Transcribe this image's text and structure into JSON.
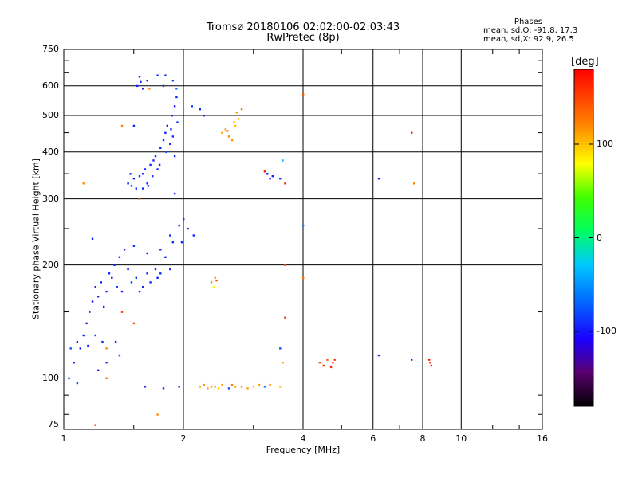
{
  "chart_data": {
    "type": "scatter",
    "title": "Tromsø 20180106 02:02:00-02:03:43",
    "subtitle": "RwPretec (8p)",
    "xlabel": "Frequency [MHz]",
    "ylabel": "Stationary phase Virtual Height [km]",
    "x_scale": "log",
    "y_scale": "log",
    "xlim": [
      1,
      16
    ],
    "ylim": [
      73,
      750
    ],
    "x_ticks": [
      1,
      2,
      4,
      6,
      8,
      10,
      16
    ],
    "x_tick_labels": [
      "1",
      "2",
      "4",
      "6",
      "8",
      "10",
      "16"
    ],
    "y_ticks": [
      75,
      100,
      200,
      300,
      400,
      500,
      600,
      750
    ],
    "y_tick_labels": [
      "75",
      "100",
      "200",
      "300",
      "400",
      "500",
      "600",
      "750"
    ],
    "grid": true,
    "info": {
      "heading": "Phases",
      "line1": "mean, sd,O: -91.8, 17.3",
      "line2": "mean, sd,X: 92.9, 26.5"
    },
    "colorbar": {
      "label": "[deg]",
      "min": -180,
      "max": 180,
      "ticks": [
        100,
        0,
        -100
      ],
      "tick_labels": [
        "100",
        "0",
        "-100"
      ]
    },
    "points": [
      [
        1.53,
        600,
        -95
      ],
      [
        1.56,
        615,
        -95
      ],
      [
        1.58,
        590,
        -100
      ],
      [
        1.55,
        635,
        -100
      ],
      [
        1.62,
        620,
        -95
      ],
      [
        1.72,
        640,
        -95
      ],
      [
        1.78,
        600,
        -90
      ],
      [
        1.8,
        640,
        -90
      ],
      [
        1.88,
        620,
        -80
      ],
      [
        1.92,
        590,
        -60
      ],
      [
        1.45,
        330,
        -95
      ],
      [
        1.48,
        325,
        -95
      ],
      [
        1.5,
        340,
        -100
      ],
      [
        1.52,
        320,
        -90
      ],
      [
        1.55,
        345,
        -95
      ],
      [
        1.58,
        350,
        -100
      ],
      [
        1.6,
        360,
        -95
      ],
      [
        1.62,
        330,
        -100
      ],
      [
        1.65,
        370,
        -95
      ],
      [
        1.68,
        380,
        -95
      ],
      [
        1.7,
        390,
        -90
      ],
      [
        1.72,
        360,
        -95
      ],
      [
        1.75,
        410,
        -95
      ],
      [
        1.78,
        430,
        -90
      ],
      [
        1.8,
        450,
        -95
      ],
      [
        1.82,
        470,
        -95
      ],
      [
        1.85,
        420,
        -95
      ],
      [
        1.87,
        500,
        -95
      ],
      [
        1.9,
        530,
        -100
      ],
      [
        1.92,
        560,
        -95
      ],
      [
        1.93,
        480,
        -95
      ],
      [
        1.47,
        350,
        -90
      ],
      [
        1.63,
        325,
        -90
      ],
      [
        1.67,
        345,
        -95
      ],
      [
        1.74,
        370,
        -95
      ],
      [
        1.81,
        400,
        -80
      ],
      [
        1.86,
        460,
        -95
      ],
      [
        1.88,
        440,
        -95
      ],
      [
        1.9,
        390,
        -95
      ],
      [
        1.58,
        320,
        -95
      ],
      [
        1.04,
        120,
        -80
      ],
      [
        1.06,
        110,
        -90
      ],
      [
        1.08,
        125,
        -95
      ],
      [
        1.1,
        120,
        -95
      ],
      [
        1.12,
        130,
        -95
      ],
      [
        1.14,
        140,
        -95
      ],
      [
        1.16,
        150,
        -95
      ],
      [
        1.18,
        160,
        -100
      ],
      [
        1.2,
        175,
        -95
      ],
      [
        1.22,
        165,
        -95
      ],
      [
        1.24,
        180,
        -95
      ],
      [
        1.26,
        155,
        -95
      ],
      [
        1.28,
        170,
        -90
      ],
      [
        1.3,
        190,
        -100
      ],
      [
        1.32,
        185,
        -95
      ],
      [
        1.34,
        200,
        -95
      ],
      [
        1.36,
        175,
        -90
      ],
      [
        1.38,
        210,
        -95
      ],
      [
        1.4,
        170,
        -95
      ],
      [
        1.45,
        195,
        -95
      ],
      [
        1.48,
        180,
        -95
      ],
      [
        1.52,
        185,
        -90
      ],
      [
        1.55,
        170,
        -100
      ],
      [
        1.58,
        175,
        -95
      ],
      [
        1.62,
        190,
        -95
      ],
      [
        1.65,
        180,
        -95
      ],
      [
        1.7,
        195,
        -90
      ],
      [
        1.72,
        185,
        -95
      ],
      [
        1.75,
        190,
        -95
      ],
      [
        1.8,
        210,
        -95
      ],
      [
        1.2,
        130,
        -90
      ],
      [
        1.25,
        125,
        -95
      ],
      [
        1.15,
        122,
        -95
      ],
      [
        1.18,
        235,
        -95
      ],
      [
        1.42,
        220,
        -95
      ],
      [
        1.5,
        225,
        -95
      ],
      [
        1.62,
        215,
        -95
      ],
      [
        1.75,
        220,
        -95
      ],
      [
        1.85,
        240,
        -95
      ],
      [
        1.88,
        230,
        -95
      ],
      [
        1.95,
        255,
        -95
      ],
      [
        1.98,
        230,
        -95
      ],
      [
        2.0,
        265,
        -95
      ],
      [
        2.05,
        250,
        -95
      ],
      [
        2.12,
        240,
        -95
      ],
      [
        1.9,
        310,
        -95
      ],
      [
        1.03,
        100,
        -80
      ],
      [
        1.08,
        97,
        -80
      ],
      [
        1.22,
        105,
        -95
      ],
      [
        1.28,
        110,
        -90
      ],
      [
        1.6,
        95,
        -95
      ],
      [
        1.78,
        94,
        -90
      ],
      [
        1.95,
        95,
        -95
      ],
      [
        2.2,
        95,
        110
      ],
      [
        2.25,
        96,
        115
      ],
      [
        2.3,
        94,
        110
      ],
      [
        2.35,
        95,
        120
      ],
      [
        2.4,
        95,
        115
      ],
      [
        2.5,
        96,
        110
      ],
      [
        2.6,
        94,
        -80
      ],
      [
        2.65,
        96,
        125
      ],
      [
        2.7,
        95,
        110
      ],
      [
        2.8,
        95,
        120
      ],
      [
        2.9,
        94,
        110
      ],
      [
        3.0,
        95,
        100
      ],
      [
        3.1,
        96,
        110
      ],
      [
        3.2,
        95,
        -60
      ],
      [
        3.3,
        96,
        120
      ],
      [
        3.5,
        95,
        100
      ],
      [
        2.45,
        94,
        95
      ],
      [
        2.5,
        450,
        110
      ],
      [
        2.55,
        460,
        115
      ],
      [
        2.6,
        440,
        120
      ],
      [
        2.7,
        470,
        100
      ],
      [
        2.65,
        430,
        115
      ],
      [
        2.75,
        490,
        110
      ],
      [
        2.8,
        520,
        125
      ],
      [
        2.72,
        510,
        115
      ],
      [
        2.58,
        455,
        118
      ],
      [
        2.68,
        480,
        105
      ],
      [
        2.35,
        180,
        120
      ],
      [
        2.4,
        185,
        110
      ],
      [
        2.38,
        175,
        80
      ],
      [
        2.42,
        182,
        150
      ],
      [
        3.2,
        355,
        170
      ],
      [
        3.25,
        350,
        -100
      ],
      [
        3.3,
        340,
        -100
      ],
      [
        3.35,
        345,
        -95
      ],
      [
        3.5,
        340,
        -95
      ],
      [
        3.55,
        380,
        -40
      ],
      [
        3.6,
        330,
        160
      ],
      [
        3.5,
        120,
        -80
      ],
      [
        3.55,
        110,
        120
      ],
      [
        3.6,
        145,
        150
      ],
      [
        3.6,
        200,
        140
      ],
      [
        4.0,
        570,
        140
      ],
      [
        4.0,
        255,
        -60
      ],
      [
        4.0,
        185,
        130
      ],
      [
        4.4,
        110,
        140
      ],
      [
        4.5,
        108,
        160
      ],
      [
        4.6,
        112,
        140
      ],
      [
        4.7,
        107,
        160
      ],
      [
        4.75,
        110,
        150
      ],
      [
        4.8,
        112,
        160
      ],
      [
        6.2,
        115,
        -95
      ],
      [
        6.2,
        340,
        -100
      ],
      [
        7.5,
        450,
        170
      ],
      [
        7.6,
        330,
        120
      ],
      [
        7.5,
        112,
        -95
      ],
      [
        8.3,
        112,
        170
      ],
      [
        8.4,
        108,
        160
      ],
      [
        8.35,
        110,
        165
      ],
      [
        1.2,
        75,
        150
      ],
      [
        1.28,
        100,
        130
      ],
      [
        1.35,
        125,
        -95
      ],
      [
        1.38,
        115,
        -80
      ],
      [
        1.4,
        150,
        150
      ],
      [
        1.4,
        470,
        120
      ],
      [
        1.12,
        330,
        120
      ],
      [
        1.55,
        300,
        120
      ],
      [
        1.72,
        80,
        120
      ],
      [
        1.5,
        470,
        -95
      ],
      [
        1.5,
        140,
        140
      ],
      [
        1.28,
        120,
        120
      ],
      [
        1.64,
        590,
        120
      ],
      [
        1.85,
        195,
        -95
      ],
      [
        2.1,
        530,
        -80
      ],
      [
        2.2,
        520,
        -95
      ],
      [
        2.25,
        500,
        -95
      ]
    ]
  }
}
